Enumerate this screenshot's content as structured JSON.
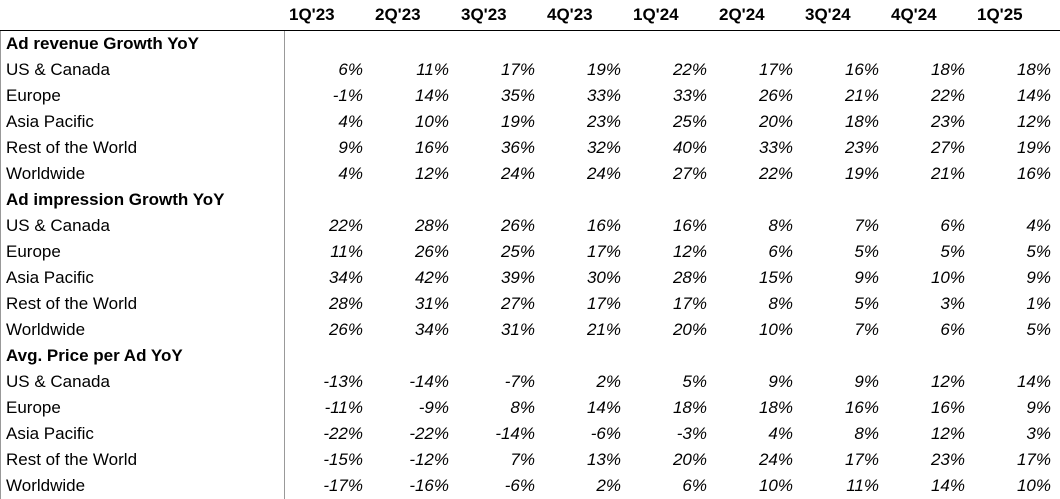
{
  "columns": [
    "1Q'23",
    "2Q'23",
    "3Q'23",
    "4Q'23",
    "1Q'24",
    "2Q'24",
    "3Q'24",
    "4Q'24",
    "1Q'25"
  ],
  "sections": [
    {
      "title": "Ad revenue Growth YoY",
      "rows": [
        {
          "label": "US & Canada",
          "values": [
            "6%",
            "11%",
            "17%",
            "19%",
            "22%",
            "17%",
            "16%",
            "18%",
            "18%"
          ]
        },
        {
          "label": "Europe",
          "values": [
            "-1%",
            "14%",
            "35%",
            "33%",
            "33%",
            "26%",
            "21%",
            "22%",
            "14%"
          ]
        },
        {
          "label": "Asia Pacific",
          "values": [
            "4%",
            "10%",
            "19%",
            "23%",
            "25%",
            "20%",
            "18%",
            "23%",
            "12%"
          ]
        },
        {
          "label": "Rest of the World",
          "values": [
            "9%",
            "16%",
            "36%",
            "32%",
            "40%",
            "33%",
            "23%",
            "27%",
            "19%"
          ]
        },
        {
          "label": "Worldwide",
          "values": [
            "4%",
            "12%",
            "24%",
            "24%",
            "27%",
            "22%",
            "19%",
            "21%",
            "16%"
          ]
        }
      ]
    },
    {
      "title": "Ad impression Growth YoY",
      "rows": [
        {
          "label": "US & Canada",
          "values": [
            "22%",
            "28%",
            "26%",
            "16%",
            "16%",
            "8%",
            "7%",
            "6%",
            "4%"
          ]
        },
        {
          "label": "Europe",
          "values": [
            "11%",
            "26%",
            "25%",
            "17%",
            "12%",
            "6%",
            "5%",
            "5%",
            "5%"
          ]
        },
        {
          "label": "Asia Pacific",
          "values": [
            "34%",
            "42%",
            "39%",
            "30%",
            "28%",
            "15%",
            "9%",
            "10%",
            "9%"
          ]
        },
        {
          "label": "Rest of the World",
          "values": [
            "28%",
            "31%",
            "27%",
            "17%",
            "17%",
            "8%",
            "5%",
            "3%",
            "1%"
          ]
        },
        {
          "label": "Worldwide",
          "values": [
            "26%",
            "34%",
            "31%",
            "21%",
            "20%",
            "10%",
            "7%",
            "6%",
            "5%"
          ]
        }
      ]
    },
    {
      "title": "Avg. Price per Ad YoY",
      "rows": [
        {
          "label": "US & Canada",
          "values": [
            "-13%",
            "-14%",
            "-7%",
            "2%",
            "5%",
            "9%",
            "9%",
            "12%",
            "14%"
          ]
        },
        {
          "label": "Europe",
          "values": [
            "-11%",
            "-9%",
            "8%",
            "14%",
            "18%",
            "18%",
            "16%",
            "16%",
            "9%"
          ]
        },
        {
          "label": "Asia Pacific",
          "values": [
            "-22%",
            "-22%",
            "-14%",
            "-6%",
            "-3%",
            "4%",
            "8%",
            "12%",
            "3%"
          ]
        },
        {
          "label": "Rest of the World",
          "values": [
            "-15%",
            "-12%",
            "7%",
            "13%",
            "20%",
            "24%",
            "17%",
            "23%",
            "17%"
          ]
        },
        {
          "label": "Worldwide",
          "values": [
            "-17%",
            "-16%",
            "-6%",
            "2%",
            "6%",
            "10%",
            "11%",
            "14%",
            "10%"
          ]
        }
      ]
    }
  ]
}
